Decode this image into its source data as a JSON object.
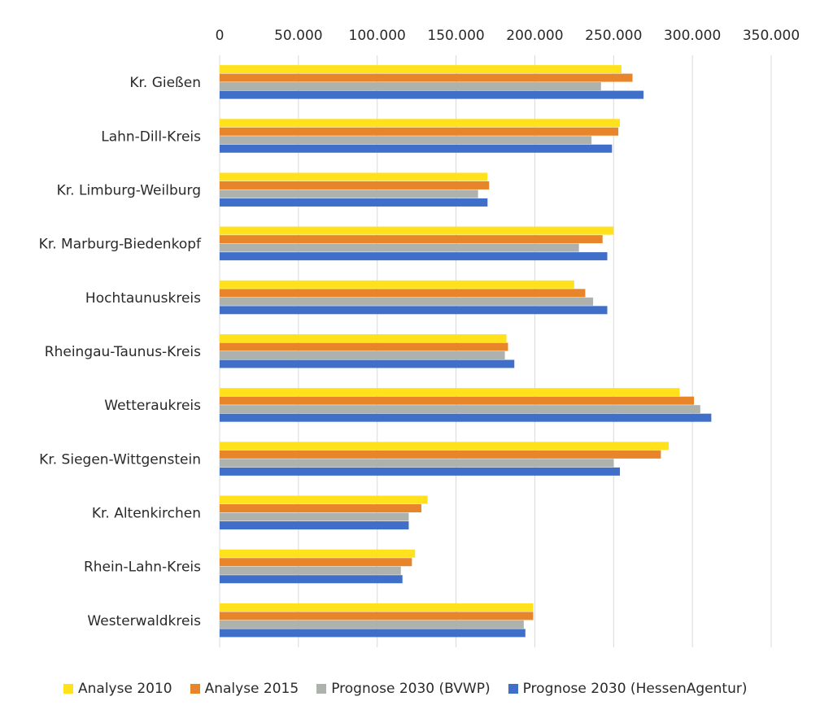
{
  "chart_data": {
    "type": "bar",
    "orientation": "horizontal",
    "title": "",
    "xlabel": "",
    "ylabel": "",
    "xlim": [
      0,
      350000
    ],
    "xticks": [
      "0",
      "50.000",
      "100.000",
      "150.000",
      "200.000",
      "250.000",
      "300.000",
      "350.000"
    ],
    "grid": true,
    "legend_position": "bottom",
    "categories": [
      "Kr. Gießen",
      "Lahn-Dill-Kreis",
      "Kr. Limburg-Weilburg",
      "Kr. Marburg-Biedenkopf",
      "Hochtaunuskreis",
      "Rheingau-Taunus-Kreis",
      "Wetteraukreis",
      "Kr. Siegen-Wittgenstein",
      "Kr. Altenkirchen",
      "Rhein-Lahn-Kreis",
      "Westerwaldkreis"
    ],
    "series": [
      {
        "name": "Analyse 2010",
        "color": "#FFE11C",
        "values": [
          255000,
          254000,
          170000,
          250000,
          225000,
          182000,
          292000,
          285000,
          132000,
          124000,
          199000
        ]
      },
      {
        "name": "Analyse 2015",
        "color": "#E8852A",
        "values": [
          262000,
          253000,
          171000,
          243000,
          232000,
          183000,
          301000,
          280000,
          128000,
          122000,
          199000
        ]
      },
      {
        "name": "Prognose 2030 (BVWP)",
        "color": "#AEB2AC",
        "values": [
          242000,
          236000,
          164000,
          228000,
          237000,
          181000,
          305000,
          250000,
          120000,
          115000,
          193000
        ]
      },
      {
        "name": "Prognose 2030 (HessenAgentur)",
        "color": "#3F6FC8",
        "values": [
          269000,
          249000,
          170000,
          246000,
          246000,
          187000,
          312000,
          254000,
          120000,
          116000,
          194000
        ]
      }
    ]
  }
}
